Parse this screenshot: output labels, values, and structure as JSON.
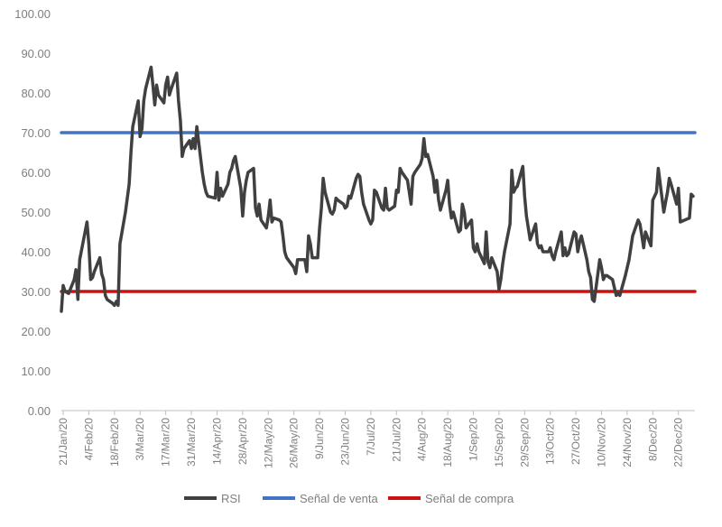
{
  "chart_data": {
    "type": "line",
    "title": "",
    "xlabel": "",
    "ylabel": "",
    "ylim": [
      0,
      100
    ],
    "y_ticks": [
      "0.00",
      "10.00",
      "20.00",
      "30.00",
      "40.00",
      "50.00",
      "60.00",
      "70.00",
      "80.00",
      "90.00",
      "100.00"
    ],
    "x_ticks": [
      "21/Jan/20",
      "4/Feb/20",
      "18/Feb/20",
      "3/Mar/20",
      "17/Mar/20",
      "31/Mar/20",
      "14/Apr/20",
      "28/Apr/20",
      "12/May/20",
      "26/May/20",
      "9/Jun/20",
      "23/Jun/20",
      "7/Jul/20",
      "21/Jul/20",
      "4/Aug/20",
      "18/Aug/20",
      "1/Sep/20",
      "15/Sep/20",
      "29/Sep/20",
      "13/Oct/20",
      "27/Oct/20",
      "10/Nov/20",
      "24/Nov/20",
      "8/Dec/20",
      "22/Dec/20"
    ],
    "x_range": [
      "2020-01-20",
      "2020-12-31"
    ],
    "grid": false,
    "legend_position": "bottom",
    "series": [
      {
        "name": "RSI",
        "color": "#404040",
        "points": [
          [
            "2020-01-20",
            25.0
          ],
          [
            "2020-01-21",
            31.5
          ],
          [
            "2020-01-22",
            30.0
          ],
          [
            "2020-01-24",
            29.5
          ],
          [
            "2020-01-27",
            33.0
          ],
          [
            "2020-01-28",
            35.5
          ],
          [
            "2020-01-29",
            28.0
          ],
          [
            "2020-01-30",
            38.0
          ],
          [
            "2020-02-03",
            47.5
          ],
          [
            "2020-02-04",
            42.0
          ],
          [
            "2020-02-05",
            33.0
          ],
          [
            "2020-02-06",
            33.5
          ],
          [
            "2020-02-07",
            35.0
          ],
          [
            "2020-02-10",
            38.5
          ],
          [
            "2020-02-11",
            34.5
          ],
          [
            "2020-02-12",
            33.0
          ],
          [
            "2020-02-13",
            29.0
          ],
          [
            "2020-02-14",
            28.0
          ],
          [
            "2020-02-17",
            27.0
          ],
          [
            "2020-02-18",
            26.5
          ],
          [
            "2020-02-19",
            27.5
          ],
          [
            "2020-02-20",
            26.5
          ],
          [
            "2020-02-21",
            42.0
          ],
          [
            "2020-02-24",
            50.0
          ],
          [
            "2020-02-26",
            57.0
          ],
          [
            "2020-02-27",
            65.0
          ],
          [
            "2020-02-28",
            71.5
          ],
          [
            "2020-03-02",
            78.0
          ],
          [
            "2020-03-03",
            69.0
          ],
          [
            "2020-03-04",
            71.0
          ],
          [
            "2020-03-05",
            78.0
          ],
          [
            "2020-03-06",
            81.0
          ],
          [
            "2020-03-09",
            86.5
          ],
          [
            "2020-03-10",
            82.0
          ],
          [
            "2020-03-11",
            77.0
          ],
          [
            "2020-03-12",
            82.0
          ],
          [
            "2020-03-13",
            79.5
          ],
          [
            "2020-03-16",
            77.5
          ],
          [
            "2020-03-17",
            82.0
          ],
          [
            "2020-03-18",
            84.0
          ],
          [
            "2020-03-19",
            79.5
          ],
          [
            "2020-03-20",
            81.0
          ],
          [
            "2020-03-23",
            85.0
          ],
          [
            "2020-03-24",
            78.0
          ],
          [
            "2020-03-25",
            73.0
          ],
          [
            "2020-03-26",
            64.0
          ],
          [
            "2020-03-27",
            66.0
          ],
          [
            "2020-03-30",
            68.0
          ],
          [
            "2020-03-31",
            66.0
          ],
          [
            "2020-04-01",
            68.5
          ],
          [
            "2020-04-02",
            66.0
          ],
          [
            "2020-04-03",
            71.5
          ],
          [
            "2020-04-06",
            60.0
          ],
          [
            "2020-04-07",
            57.0
          ],
          [
            "2020-04-08",
            55.0
          ],
          [
            "2020-04-09",
            54.0
          ],
          [
            "2020-04-13",
            53.5
          ],
          [
            "2020-04-14",
            60.0
          ],
          [
            "2020-04-15",
            53.0
          ],
          [
            "2020-04-16",
            56.0
          ],
          [
            "2020-04-17",
            54.0
          ],
          [
            "2020-04-20",
            57.0
          ],
          [
            "2020-04-21",
            60.0
          ],
          [
            "2020-04-22",
            61.0
          ],
          [
            "2020-04-23",
            63.0
          ],
          [
            "2020-04-24",
            64.0
          ],
          [
            "2020-04-27",
            56.0
          ],
          [
            "2020-04-28",
            49.0
          ],
          [
            "2020-04-29",
            55.0
          ],
          [
            "2020-04-30",
            58.0
          ],
          [
            "2020-05-01",
            60.0
          ],
          [
            "2020-05-04",
            61.0
          ],
          [
            "2020-05-05",
            51.0
          ],
          [
            "2020-05-06",
            49.0
          ],
          [
            "2020-05-07",
            52.0
          ],
          [
            "2020-05-08",
            48.0
          ],
          [
            "2020-05-11",
            46.0
          ],
          [
            "2020-05-12",
            49.0
          ],
          [
            "2020-05-13",
            53.0
          ],
          [
            "2020-05-14",
            47.5
          ],
          [
            "2020-05-15",
            48.5
          ],
          [
            "2020-05-18",
            48.0
          ],
          [
            "2020-05-19",
            47.5
          ],
          [
            "2020-05-20",
            44.0
          ],
          [
            "2020-05-21",
            40.0
          ],
          [
            "2020-05-22",
            38.5
          ],
          [
            "2020-05-26",
            36.0
          ],
          [
            "2020-05-27",
            34.5
          ],
          [
            "2020-05-28",
            38.0
          ],
          [
            "2020-05-29",
            38.0
          ],
          [
            "2020-06-01",
            38.0
          ],
          [
            "2020-06-02",
            35.0
          ],
          [
            "2020-06-03",
            44.0
          ],
          [
            "2020-06-04",
            42.0
          ],
          [
            "2020-06-05",
            38.5
          ],
          [
            "2020-06-08",
            38.5
          ],
          [
            "2020-06-09",
            46.0
          ],
          [
            "2020-06-10",
            51.0
          ],
          [
            "2020-06-11",
            58.5
          ],
          [
            "2020-06-12",
            55.0
          ],
          [
            "2020-06-15",
            50.0
          ],
          [
            "2020-06-16",
            49.5
          ],
          [
            "2020-06-17",
            50.5
          ],
          [
            "2020-06-18",
            53.5
          ],
          [
            "2020-06-19",
            53.0
          ],
          [
            "2020-06-22",
            52.0
          ],
          [
            "2020-06-23",
            51.0
          ],
          [
            "2020-06-24",
            51.5
          ],
          [
            "2020-06-25",
            54.0
          ],
          [
            "2020-06-26",
            53.5
          ],
          [
            "2020-06-29",
            58.5
          ],
          [
            "2020-06-30",
            59.5
          ],
          [
            "2020-07-01",
            59.0
          ],
          [
            "2020-07-02",
            55.0
          ],
          [
            "2020-07-03",
            52.0
          ],
          [
            "2020-07-06",
            48.0
          ],
          [
            "2020-07-07",
            47.0
          ],
          [
            "2020-07-08",
            48.0
          ],
          [
            "2020-07-09",
            55.5
          ],
          [
            "2020-07-10",
            55.0
          ],
          [
            "2020-07-13",
            51.0
          ],
          [
            "2020-07-14",
            50.5
          ],
          [
            "2020-07-15",
            56.0
          ],
          [
            "2020-07-16",
            51.0
          ],
          [
            "2020-07-17",
            50.5
          ],
          [
            "2020-07-20",
            51.5
          ],
          [
            "2020-07-21",
            55.5
          ],
          [
            "2020-07-22",
            55.0
          ],
          [
            "2020-07-23",
            61.0
          ],
          [
            "2020-07-24",
            60.0
          ],
          [
            "2020-07-27",
            58.0
          ],
          [
            "2020-07-28",
            55.0
          ],
          [
            "2020-07-29",
            52.0
          ],
          [
            "2020-07-30",
            59.0
          ],
          [
            "2020-07-31",
            60.0
          ],
          [
            "2020-08-03",
            62.0
          ],
          [
            "2020-08-04",
            63.5
          ],
          [
            "2020-08-05",
            68.5
          ],
          [
            "2020-08-06",
            64.0
          ],
          [
            "2020-08-07",
            64.5
          ],
          [
            "2020-08-10",
            59.0
          ],
          [
            "2020-08-11",
            55.0
          ],
          [
            "2020-08-12",
            58.0
          ],
          [
            "2020-08-13",
            53.0
          ],
          [
            "2020-08-14",
            50.5
          ],
          [
            "2020-08-17",
            55.5
          ],
          [
            "2020-08-18",
            58.0
          ],
          [
            "2020-08-19",
            52.0
          ],
          [
            "2020-08-20",
            48.5
          ],
          [
            "2020-08-21",
            50.0
          ],
          [
            "2020-08-24",
            45.0
          ],
          [
            "2020-08-25",
            45.5
          ],
          [
            "2020-08-26",
            52.0
          ],
          [
            "2020-08-27",
            50.0
          ],
          [
            "2020-08-28",
            46.0
          ],
          [
            "2020-08-31",
            48.0
          ],
          [
            "2020-09-01",
            41.0
          ],
          [
            "2020-09-02",
            40.0
          ],
          [
            "2020-09-03",
            42.0
          ],
          [
            "2020-09-04",
            40.0
          ],
          [
            "2020-09-07",
            37.0
          ],
          [
            "2020-09-08",
            45.0
          ],
          [
            "2020-09-09",
            37.5
          ],
          [
            "2020-09-10",
            36.0
          ],
          [
            "2020-09-11",
            38.5
          ],
          [
            "2020-09-14",
            35.0
          ],
          [
            "2020-09-15",
            30.5
          ],
          [
            "2020-09-16",
            33.0
          ],
          [
            "2020-09-17",
            37.0
          ],
          [
            "2020-09-18",
            40.0
          ],
          [
            "2020-09-21",
            47.0
          ],
          [
            "2020-09-22",
            60.5
          ],
          [
            "2020-09-23",
            55.0
          ],
          [
            "2020-09-24",
            56.0
          ],
          [
            "2020-09-25",
            56.5
          ],
          [
            "2020-09-28",
            61.5
          ],
          [
            "2020-09-29",
            54.0
          ],
          [
            "2020-09-30",
            49.0
          ],
          [
            "2020-10-01",
            46.0
          ],
          [
            "2020-10-02",
            43.0
          ],
          [
            "2020-10-05",
            47.0
          ],
          [
            "2020-10-06",
            42.0
          ],
          [
            "2020-10-07",
            41.0
          ],
          [
            "2020-10-08",
            41.5
          ],
          [
            "2020-10-09",
            40.0
          ],
          [
            "2020-10-12",
            40.0
          ],
          [
            "2020-10-13",
            41.0
          ],
          [
            "2020-10-14",
            39.0
          ],
          [
            "2020-10-15",
            38.0
          ],
          [
            "2020-10-16",
            40.0
          ],
          [
            "2020-10-19",
            45.0
          ],
          [
            "2020-10-20",
            39.0
          ],
          [
            "2020-10-21",
            41.0
          ],
          [
            "2020-10-22",
            39.0
          ],
          [
            "2020-10-23",
            39.5
          ],
          [
            "2020-10-26",
            45.0
          ],
          [
            "2020-10-27",
            44.5
          ],
          [
            "2020-10-28",
            40.0
          ],
          [
            "2020-10-29",
            42.5
          ],
          [
            "2020-10-30",
            44.0
          ],
          [
            "2020-11-02",
            38.0
          ],
          [
            "2020-11-03",
            35.0
          ],
          [
            "2020-11-04",
            33.5
          ],
          [
            "2020-11-05",
            28.0
          ],
          [
            "2020-11-06",
            27.5
          ],
          [
            "2020-11-09",
            38.0
          ],
          [
            "2020-11-10",
            36.0
          ],
          [
            "2020-11-11",
            33.0
          ],
          [
            "2020-11-12",
            34.0
          ],
          [
            "2020-11-13",
            34.0
          ],
          [
            "2020-11-16",
            33.0
          ],
          [
            "2020-11-17",
            31.0
          ],
          [
            "2020-11-18",
            29.0
          ],
          [
            "2020-11-19",
            29.5
          ],
          [
            "2020-11-20",
            29.0
          ],
          [
            "2020-11-23",
            34.0
          ],
          [
            "2020-11-25",
            38.0
          ],
          [
            "2020-11-27",
            44.0
          ],
          [
            "2020-11-30",
            48.0
          ],
          [
            "2020-12-01",
            47.0
          ],
          [
            "2020-12-02",
            44.0
          ],
          [
            "2020-12-03",
            41.0
          ],
          [
            "2020-12-04",
            45.0
          ],
          [
            "2020-12-07",
            41.5
          ],
          [
            "2020-12-08",
            53.0
          ],
          [
            "2020-12-10",
            55.0
          ],
          [
            "2020-12-11",
            61.0
          ],
          [
            "2020-12-14",
            50.0
          ],
          [
            "2020-12-15",
            52.5
          ],
          [
            "2020-12-16",
            55.0
          ],
          [
            "2020-12-17",
            58.5
          ],
          [
            "2020-12-18",
            57.0
          ],
          [
            "2020-12-21",
            52.0
          ],
          [
            "2020-12-22",
            56.0
          ],
          [
            "2020-12-23",
            47.5
          ],
          [
            "2020-12-28",
            48.5
          ],
          [
            "2020-12-29",
            54.5
          ],
          [
            "2020-12-30",
            54.0
          ]
        ]
      },
      {
        "name": "Señal de venta",
        "color": "#4472c4",
        "points": [
          [
            "2020-01-20",
            70
          ],
          [
            "2020-12-31",
            70
          ]
        ]
      },
      {
        "name": "Señal de compra",
        "color": "#cc1111",
        "points": [
          [
            "2020-01-20",
            30
          ],
          [
            "2020-12-31",
            30
          ]
        ]
      }
    ]
  }
}
